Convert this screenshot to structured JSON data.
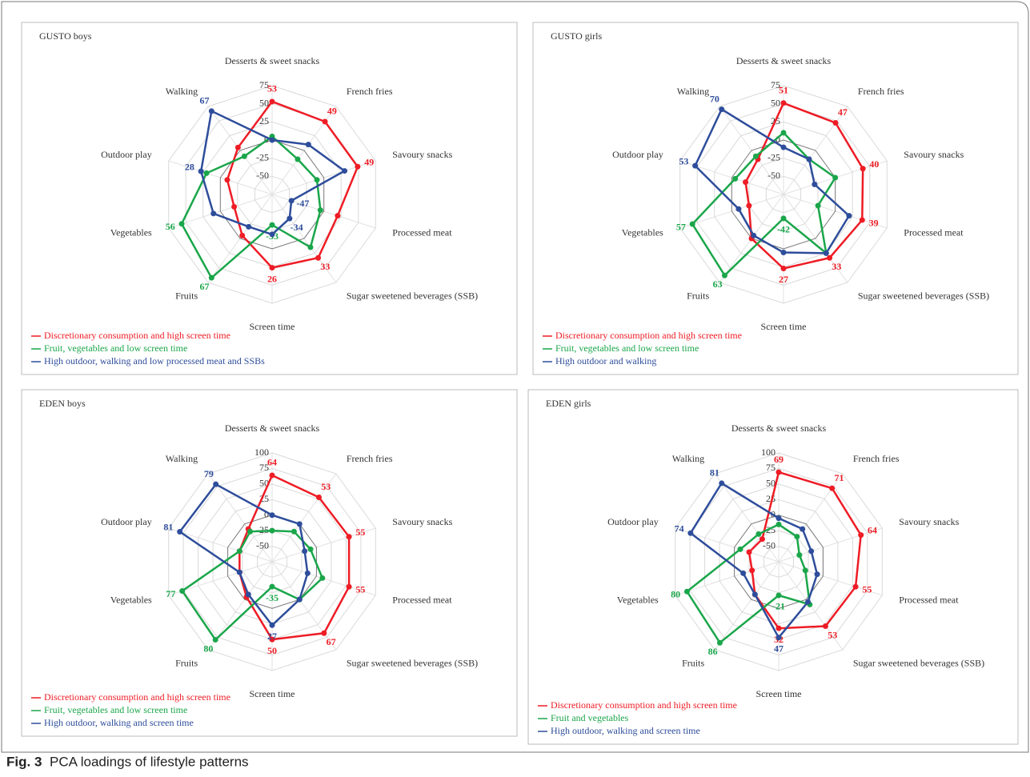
{
  "chart_data": [
    {
      "type": "radar",
      "title": "GUSTO boys",
      "categories": [
        "Desserts & sweet snacks",
        "French fries",
        "Savoury snacks",
        "Processed meat",
        "Sugar sweetened beverages (SSB)",
        "Screen time",
        "Fruits",
        "Vegetables",
        "Outdoor play",
        "Walking"
      ],
      "rlim": [
        -75,
        75
      ],
      "rticks": [
        -50,
        -25,
        0,
        25,
        50,
        75
      ],
      "legend": "bottom-left",
      "series": [
        {
          "name": "Discretionary consumption and high screen time",
          "color": "#ee1c25",
          "values": [
            53,
            49,
            49,
            20,
            33,
            26,
            -5,
            -20,
            -10,
            5
          ],
          "value_labels": [
            "53",
            "49",
            "49",
            null,
            "33",
            "26",
            null,
            null,
            null,
            null
          ]
        },
        {
          "name": "Fruit, vegetables and low screen time",
          "color": "#1aa64a",
          "values": [
            5,
            -15,
            -10,
            -5,
            15,
            -33,
            67,
            56,
            20,
            -10
          ],
          "value_labels": [
            null,
            null,
            null,
            null,
            null,
            "-33",
            "67",
            "56",
            null,
            null
          ]
        },
        {
          "name": "High outdoor, walking and low processed meat and SSBs",
          "color": "#2e4d9b",
          "values": [
            0,
            10,
            30,
            -47,
            -34,
            -20,
            -20,
            10,
            28,
            67
          ],
          "value_labels": [
            null,
            null,
            null,
            "-47",
            "-34",
            null,
            null,
            null,
            "28",
            "67"
          ]
        }
      ]
    },
    {
      "type": "radar",
      "title": "GUSTO girls",
      "categories": [
        "Desserts & sweet snacks",
        "French fries",
        "Savoury snacks",
        "Processed meat",
        "Sugar sweetened beverages (SSB)",
        "Screen time",
        "Fruits",
        "Vegetables",
        "Outdoor play",
        "Walking"
      ],
      "rlim": [
        -75,
        75
      ],
      "rticks": [
        -50,
        -25,
        0,
        25,
        50,
        75
      ],
      "legend": "bottom-left",
      "series": [
        {
          "name": "Discretionary consumption and high screen time",
          "color": "#ee1c25",
          "values": [
            51,
            47,
            40,
            39,
            33,
            27,
            0,
            -25,
            -20,
            -15
          ],
          "value_labels": [
            "51",
            "47",
            "40",
            "39",
            "33",
            "27",
            null,
            null,
            null,
            null
          ]
        },
        {
          "name": "Fruit, vegetables and low screen time",
          "color": "#1aa64a",
          "values": [
            10,
            -15,
            0,
            -25,
            25,
            -42,
            63,
            57,
            -5,
            -10
          ],
          "value_labels": [
            null,
            null,
            null,
            null,
            null,
            "-42",
            "63",
            "57",
            null,
            null
          ]
        },
        {
          "name": "High outdoor and walking",
          "color": "#2e4d9b",
          "values": [
            -10,
            -15,
            -30,
            20,
            25,
            5,
            -5,
            -10,
            53,
            70
          ],
          "value_labels": [
            null,
            null,
            null,
            null,
            null,
            null,
            null,
            null,
            "53",
            "70"
          ]
        }
      ]
    },
    {
      "type": "radar",
      "title": "EDEN boys",
      "categories": [
        "Desserts & sweet snacks",
        "French fries",
        "Savoury snacks",
        "Processed meat",
        "Sugar sweetened beverages (SSB)",
        "Screen time",
        "Fruits",
        "Vegetables",
        "Outdoor play",
        "Walking"
      ],
      "rlim": [
        -75,
        100
      ],
      "rticks": [
        -50,
        -25,
        0,
        25,
        50,
        75,
        100
      ],
      "legend": "bottom-left",
      "series": [
        {
          "name": "Discretionary consumption and high screen time",
          "color": "#ee1c25",
          "values": [
            64,
            53,
            55,
            55,
            67,
            50,
            -5,
            -20,
            -20,
            -10
          ],
          "value_labels": [
            "64",
            "53",
            "55",
            "55",
            "67",
            "50",
            null,
            null,
            null,
            null
          ]
        },
        {
          "name": "Fruit, vegetables and low screen time",
          "color": "#1aa64a",
          "values": [
            -25,
            -15,
            -10,
            10,
            0,
            -35,
            80,
            77,
            -20,
            -15
          ],
          "value_labels": [
            null,
            null,
            null,
            null,
            null,
            "-35",
            "80",
            "77",
            null,
            null
          ]
        },
        {
          "name": "High outdoor, walking and screen time",
          "color": "#2e4d9b",
          "values": [
            0,
            0,
            -20,
            -15,
            0,
            27,
            -10,
            -20,
            81,
            79
          ],
          "value_labels": [
            null,
            null,
            null,
            null,
            null,
            "27",
            null,
            null,
            "81",
            "79"
          ]
        }
      ]
    },
    {
      "type": "radar",
      "title": "EDEN girls",
      "categories": [
        "Desserts & sweet snacks",
        "French fries",
        "Savoury snacks",
        "Processed meat",
        "Sugar sweetened beverages (SSB)",
        "Screen time",
        "Fruits",
        "Vegetables",
        "Outdoor play",
        "Walking"
      ],
      "rlim": [
        -75,
        100
      ],
      "rticks": [
        -50,
        -25,
        0,
        25,
        50,
        75,
        100
      ],
      "legend": "bottom-left",
      "series": [
        {
          "name": "Discretionary consumption and high screen time",
          "color": "#ee1c25",
          "values": [
            69,
            71,
            64,
            55,
            53,
            32,
            -10,
            -30,
            -25,
            -30
          ],
          "value_labels": [
            "69",
            "71",
            "64",
            "55",
            "53",
            "32",
            null,
            null,
            null,
            null
          ]
        },
        {
          "name": "Fruit and vegetables",
          "color": "#1aa64a",
          "values": [
            -15,
            -25,
            -40,
            -30,
            10,
            -21,
            86,
            80,
            -10,
            -20
          ],
          "value_labels": [
            null,
            null,
            null,
            null,
            null,
            "-21",
            "86",
            "80",
            null,
            null
          ]
        },
        {
          "name": "High outdoor, walking and screen time",
          "color": "#2e4d9b",
          "values": [
            -5,
            -10,
            -20,
            -10,
            5,
            47,
            -10,
            -15,
            74,
            81
          ],
          "value_labels": [
            null,
            null,
            null,
            null,
            null,
            "47",
            null,
            null,
            "74",
            "81"
          ]
        }
      ]
    }
  ],
  "caption": {
    "label": "Fig. 3",
    "text": "PCA loadings of lifestyle patterns"
  }
}
